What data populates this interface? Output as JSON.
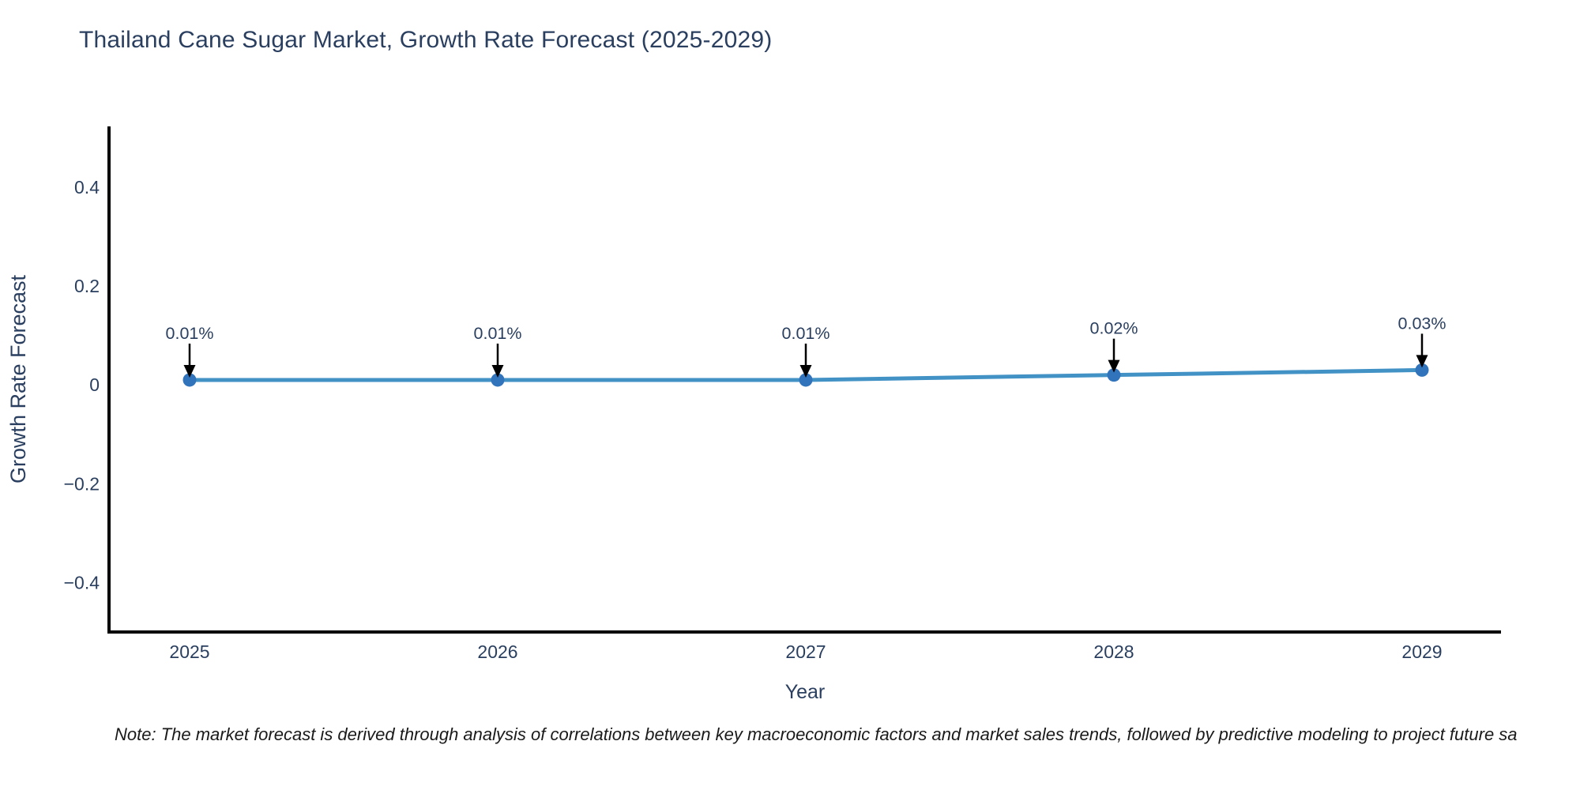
{
  "title": "Thailand Cane Sugar Market, Growth Rate Forecast (2025-2029)",
  "note": "Note: The market forecast is derived through analysis of correlations between key macroeconomic factors and market sales trends, followed by predictive modeling to project future sa",
  "colors": {
    "title_text": "#2a3f5f",
    "axis_text": "#2a3f5f",
    "annotation_text": "#2a3f5f",
    "note_text": "#1a1a1a",
    "axis_line": "#000000",
    "line": "#4292c6",
    "marker": "#3174bb",
    "arrow": "#000000",
    "background": "#ffffff"
  },
  "chart_data": {
    "type": "line",
    "title": "Thailand Cane Sugar Market, Growth Rate Forecast (2025-2029)",
    "xlabel": "Year",
    "ylabel": "Growth Rate Forecast",
    "categories": [
      "2025",
      "2026",
      "2027",
      "2028",
      "2029"
    ],
    "series": [
      {
        "name": "Growth Rate Forecast",
        "values": [
          0.01,
          0.01,
          0.01,
          0.02,
          0.03
        ]
      }
    ],
    "point_labels": [
      "0.01%",
      "0.01%",
      "0.01%",
      "0.02%",
      "0.03%"
    ],
    "ytick_values": [
      -0.4,
      -0.2,
      0,
      0.2,
      0.4
    ],
    "ytick_labels": [
      "−0.4",
      "−0.2",
      "0",
      "0.2",
      "0.4"
    ],
    "ylim": [
      -0.5,
      0.523
    ],
    "grid": false,
    "legend": "none"
  }
}
